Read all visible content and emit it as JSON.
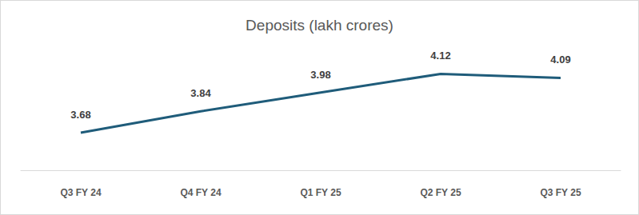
{
  "chart_data": {
    "type": "line",
    "title": "Deposits (lakh crores)",
    "categories": [
      "Q3 FY 24",
      "Q4 FY 24",
      "Q1 FY 25",
      "Q2 FY 25",
      "Q3 FY 25"
    ],
    "values": [
      3.68,
      3.84,
      3.98,
      4.12,
      4.09
    ],
    "color": "#1f5c7a",
    "ylim": [
      3.4,
      4.2
    ],
    "grid": false,
    "data_labels": true,
    "tick_labels": "x"
  }
}
